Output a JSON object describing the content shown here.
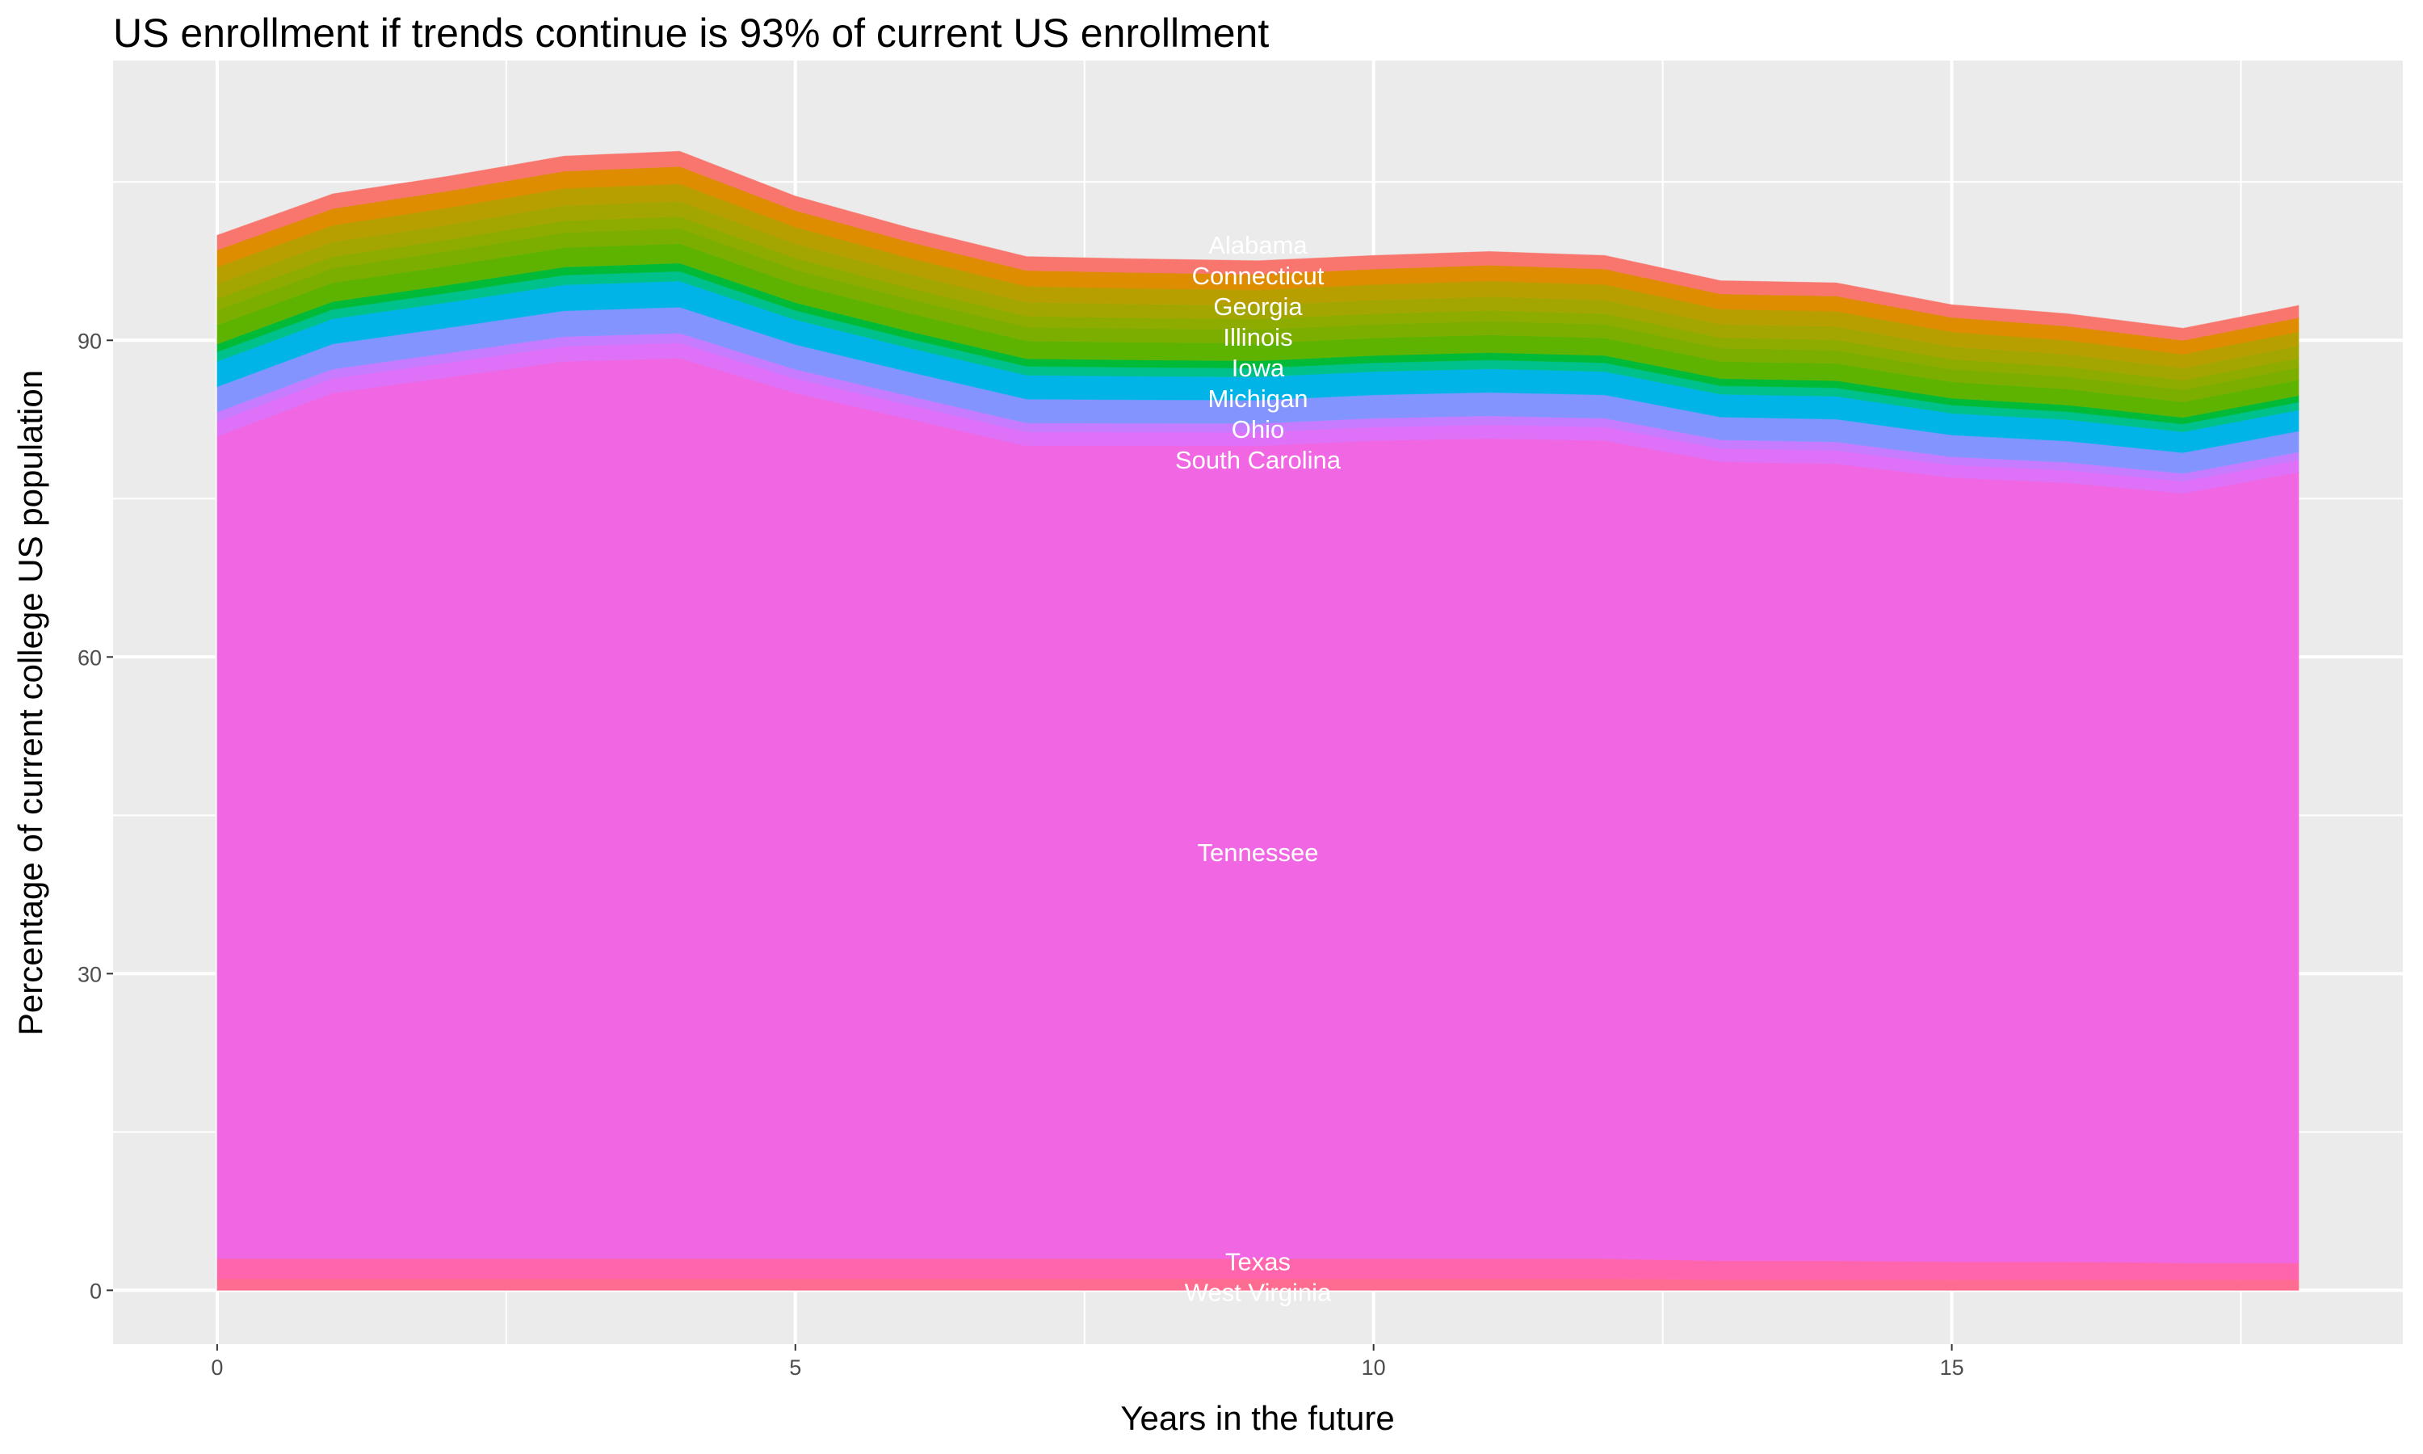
{
  "chart_data": {
    "type": "area",
    "stacked": true,
    "title": "US enrollment if trends continue is 93% of current US enrollment",
    "xlabel": "Years in the future",
    "ylabel": "Percentage of current college US population",
    "xlim": [
      -0.9,
      18.9
    ],
    "ylim": [
      -5.1,
      116.5
    ],
    "x_ticks": [
      0,
      5,
      10,
      15
    ],
    "x_tick_labels": [
      "0",
      "5",
      "10",
      "15"
    ],
    "y_ticks": [
      0,
      30,
      60,
      90
    ],
    "y_tick_labels": [
      "0",
      "30",
      "60",
      "90"
    ],
    "grid": true,
    "legend": "none",
    "label_x": 9,
    "x": [
      0,
      1,
      2,
      3,
      4,
      5,
      6,
      7,
      8,
      9,
      10,
      11,
      12,
      13,
      14,
      15,
      16,
      17,
      18
    ],
    "series_bottom_to_top": [
      {
        "name": "West Virginia",
        "color": "#FF6C91",
        "values": [
          1.1,
          1.1,
          1.1,
          1.1,
          1.1,
          1.1,
          1.1,
          1.1,
          1.1,
          1.1,
          1.1,
          1.1,
          1.1,
          1.0,
          1.0,
          1.0,
          1.0,
          1.0,
          1.0
        ]
      },
      {
        "name": "Texas",
        "color": "#FF65AC",
        "values": [
          1.9,
          1.9,
          1.9,
          1.9,
          1.9,
          1.9,
          1.9,
          1.9,
          1.9,
          1.9,
          1.9,
          1.9,
          1.9,
          1.8,
          1.8,
          1.7,
          1.7,
          1.6,
          1.6
        ]
      },
      {
        "name": "Tennessee",
        "color": "#F066E3",
        "values": [
          77.9,
          82,
          83.5,
          85,
          85.3,
          82,
          79.5,
          77,
          77,
          77,
          77.5,
          77.7,
          77.5,
          75.7,
          75.5,
          74.3,
          73.8,
          72.9,
          74.9
        ]
      },
      {
        "name": "South Carolina",
        "color": "#DF70F8",
        "values": [
          1.4,
          1.39,
          1.4,
          1.43,
          1.44,
          1.37,
          1.33,
          1.32,
          1.3,
          1.29,
          1.29,
          1.3,
          1.29,
          1.26,
          1.26,
          1.2,
          1.18,
          1.15,
          1.16
        ]
      },
      {
        "color": "#C77CFF",
        "values": [
          0.9,
          0.89,
          0.9,
          0.92,
          0.93,
          0.88,
          0.86,
          0.85,
          0.84,
          0.83,
          0.83,
          0.84,
          0.83,
          0.81,
          0.81,
          0.77,
          0.76,
          0.74,
          0.75
        ]
      },
      {
        "name": "Ohio",
        "color": "#8494FF",
        "values": [
          2.4,
          2.38,
          2.4,
          2.45,
          2.47,
          2.35,
          2.28,
          2.26,
          2.23,
          2.21,
          2.21,
          2.23,
          2.21,
          2.16,
          2.16,
          2.06,
          2.02,
          1.97,
          1.99
        ]
      },
      {
        "name": "Michigan",
        "color": "#00B4E8",
        "values": [
          2.4,
          2.38,
          2.4,
          2.45,
          2.47,
          2.35,
          2.28,
          2.26,
          2.23,
          2.21,
          2.21,
          2.23,
          2.21,
          2.16,
          2.16,
          2.06,
          2.02,
          1.97,
          1.99
        ]
      },
      {
        "color": "#00C08B",
        "values": [
          0.9,
          0.89,
          0.9,
          0.92,
          0.93,
          0.88,
          0.86,
          0.85,
          0.84,
          0.83,
          0.83,
          0.84,
          0.83,
          0.81,
          0.81,
          0.77,
          0.76,
          0.74,
          0.75
        ]
      },
      {
        "name": "Iowa",
        "color": "#00BA38",
        "values": [
          0.75,
          0.74,
          0.75,
          0.77,
          0.77,
          0.74,
          0.71,
          0.71,
          0.7,
          0.69,
          0.69,
          0.7,
          0.69,
          0.68,
          0.68,
          0.65,
          0.63,
          0.62,
          0.62
        ]
      },
      {
        "color": "#5EB300",
        "values": [
          1.8,
          1.78,
          1.8,
          1.84,
          1.85,
          1.76,
          1.71,
          1.69,
          1.67,
          1.66,
          1.66,
          1.67,
          1.66,
          1.62,
          1.62,
          1.55,
          1.51,
          1.48,
          1.49
        ]
      },
      {
        "name": "Illinois",
        "color": "#7CAE00",
        "values": [
          1.4,
          1.39,
          1.4,
          1.43,
          1.44,
          1.37,
          1.33,
          1.32,
          1.3,
          1.29,
          1.29,
          1.3,
          1.29,
          1.26,
          1.26,
          1.2,
          1.18,
          1.15,
          1.16
        ]
      },
      {
        "color": "#8EAB00",
        "values": [
          1.1,
          1.09,
          1.1,
          1.12,
          1.13,
          1.08,
          1.05,
          1.03,
          1.02,
          1.01,
          1.01,
          1.02,
          1.01,
          0.99,
          0.99,
          0.95,
          0.92,
          0.9,
          0.91
        ]
      },
      {
        "name": "Georgia",
        "color": "#A3A500",
        "values": [
          1.4,
          1.39,
          1.4,
          1.43,
          1.44,
          1.37,
          1.33,
          1.32,
          1.3,
          1.29,
          1.29,
          1.3,
          1.29,
          1.26,
          1.26,
          1.2,
          1.18,
          1.15,
          1.16
        ]
      },
      {
        "name": "Connecticut",
        "color": "#B79F00",
        "values": [
          1.6,
          1.58,
          1.6,
          1.63,
          1.65,
          1.57,
          1.52,
          1.5,
          1.49,
          1.47,
          1.47,
          1.49,
          1.47,
          1.44,
          1.44,
          1.38,
          1.34,
          1.31,
          1.33
        ]
      },
      {
        "color": "#DE8C00",
        "values": [
          1.6,
          1.58,
          1.6,
          1.63,
          1.65,
          1.57,
          1.52,
          1.5,
          1.49,
          1.47,
          1.47,
          1.49,
          1.47,
          1.44,
          1.44,
          1.38,
          1.34,
          1.31,
          1.33
        ]
      },
      {
        "name": "Alabama",
        "color": "#F8766D",
        "values": [
          1.4,
          1.39,
          1.4,
          1.43,
          1.44,
          1.37,
          1.33,
          1.32,
          1.3,
          1.29,
          1.29,
          1.3,
          1.29,
          1.26,
          1.26,
          1.2,
          1.18,
          1.15,
          1.16
        ]
      }
    ]
  }
}
